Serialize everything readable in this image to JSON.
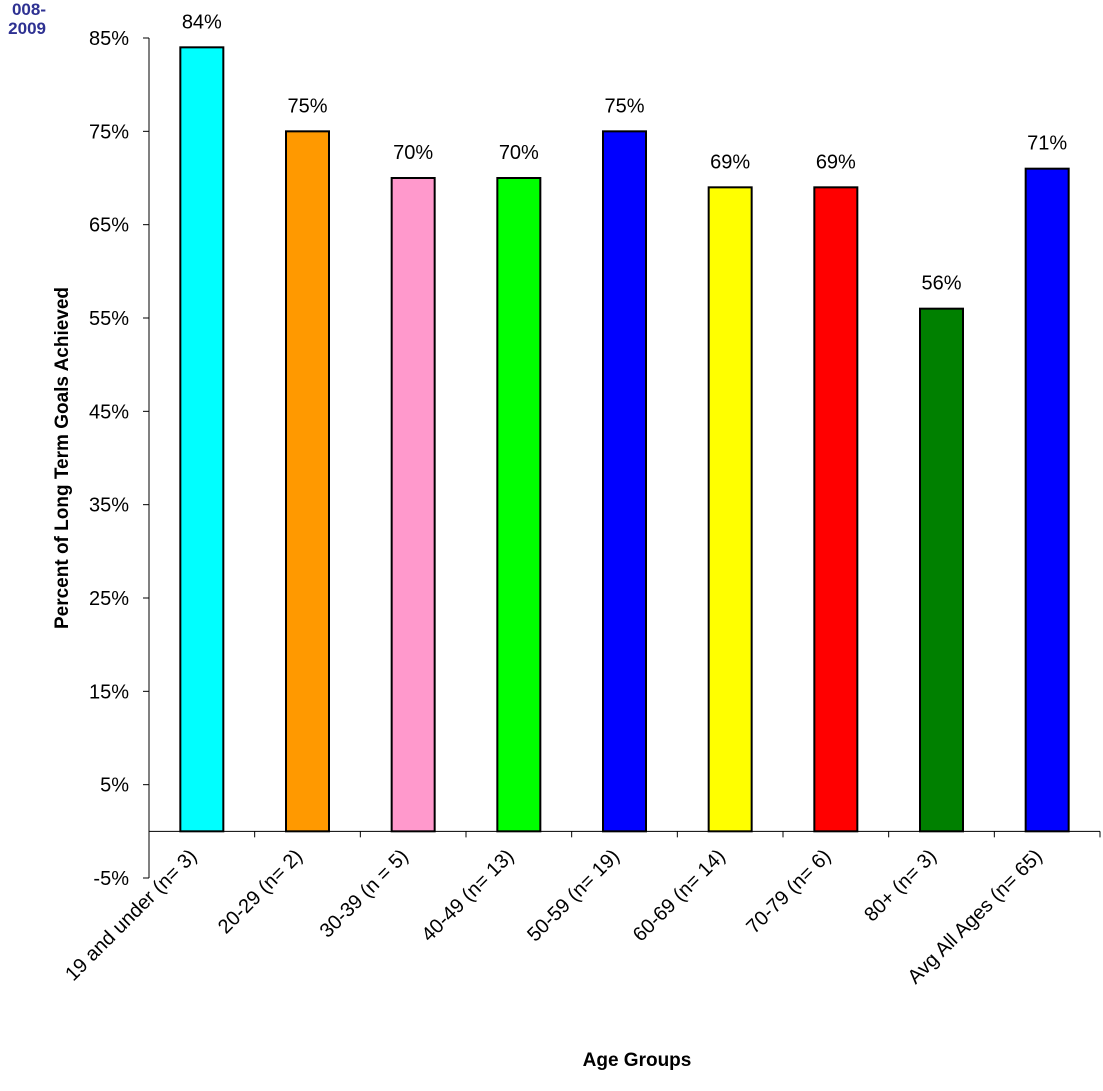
{
  "corner_label": {
    "line1": "008-",
    "line2": "2009"
  },
  "colors": {
    "corner_label": "#2e3192",
    "bar_stroke": "#000000",
    "axis": "#000000"
  },
  "chart_data": {
    "type": "bar",
    "title": "",
    "xlabel": "Age Groups",
    "ylabel": "Percent of Long Term Goals Achieved",
    "ylim": [
      -5,
      85
    ],
    "yticks": [
      85,
      75,
      65,
      55,
      45,
      35,
      25,
      15,
      5,
      -5
    ],
    "ytick_labels": [
      "85%",
      "75%",
      "65%",
      "55%",
      "45%",
      "35%",
      "25%",
      "15%",
      "5%",
      "-5%"
    ],
    "grid": false,
    "legend": "none",
    "categories": [
      "19 and under (n= 3)",
      "20-29 (n= 2)",
      "30-39 (n = 5)",
      "40-49 (n= 13)",
      "50-59 (n= 19)",
      "60-69 (n= 14)",
      "70-79 (n= 6)",
      "80+ (n= 3)",
      "Avg All Ages (n= 65)"
    ],
    "values": [
      84,
      75,
      70,
      70,
      75,
      69,
      69,
      56,
      71
    ],
    "data_labels": [
      "84%",
      "75%",
      "70%",
      "70%",
      "75%",
      "69%",
      "69%",
      "56%",
      "71%"
    ],
    "bar_colors": [
      "#00ffff",
      "#ff9900",
      "#ff99cc",
      "#00ff00",
      "#0000ff",
      "#ffff00",
      "#ff0000",
      "#008000",
      "#0000ff"
    ]
  }
}
